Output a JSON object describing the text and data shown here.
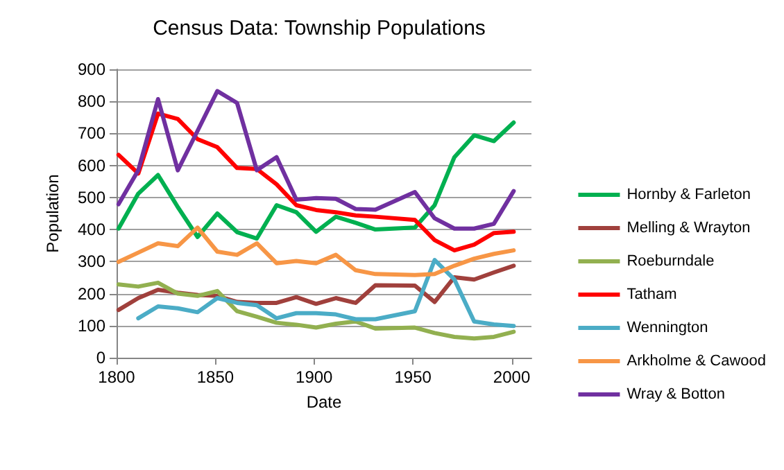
{
  "chart_data": {
    "type": "line",
    "title": "Census Data: Township Populations",
    "xlabel": "Date",
    "ylabel": "Population",
    "x": [
      1801,
      1811,
      1821,
      1831,
      1841,
      1851,
      1861,
      1871,
      1881,
      1891,
      1901,
      1911,
      1921,
      1931,
      1951,
      1961,
      1971,
      1981,
      1991,
      2001
    ],
    "series": [
      {
        "name": "Hornby & Farleton",
        "color": "#00b050",
        "values": [
          403,
          512,
          570,
          470,
          377,
          450,
          392,
          372,
          476,
          454,
          393,
          440,
          421,
          400,
          406,
          476,
          626,
          694,
          676,
          734
        ]
      },
      {
        "name": "Melling & Wrayton",
        "color": "#a0403c",
        "values": [
          149,
          186,
          212,
          203,
          196,
          193,
          174,
          171,
          171,
          189,
          168,
          186,
          171,
          226,
          225,
          174,
          251,
          244,
          266,
          287
        ]
      },
      {
        "name": "Roeburndale",
        "color": "#92b050",
        "values": [
          229,
          222,
          234,
          200,
          193,
          208,
          145,
          128,
          109,
          103,
          94,
          106,
          113,
          91,
          94,
          77,
          65,
          60,
          65,
          81
        ]
      },
      {
        "name": "Tatham",
        "color": "#ff0000",
        "values": [
          633,
          575,
          762,
          745,
          682,
          657,
          592,
          589,
          541,
          476,
          461,
          454,
          444,
          440,
          430,
          367,
          335,
          353,
          389,
          393
        ]
      },
      {
        "name": "Wennington",
        "color": "#4bacc6",
        "values": [
          null,
          123,
          160,
          154,
          142,
          186,
          171,
          164,
          123,
          139,
          139,
          135,
          120,
          120,
          145,
          305,
          244,
          113,
          104,
          99
        ]
      },
      {
        "name": "Arkholme & Cawood",
        "color": "#f79646",
        "values": [
          299,
          328,
          357,
          348,
          406,
          331,
          321,
          357,
          295,
          302,
          295,
          321,
          273,
          261,
          258,
          261,
          287,
          309,
          324,
          335
        ]
      },
      {
        "name": "Wray & Botton",
        "color": "#7030a0",
        "values": [
          479,
          585,
          807,
          585,
          708,
          832,
          795,
          585,
          626,
          493,
          498,
          496,
          464,
          462,
          517,
          435,
          403,
          403,
          418,
          520
        ]
      }
    ],
    "xlim": [
      1800,
      2010
    ],
    "xticks": [
      1800,
      1850,
      1900,
      1950,
      2000
    ],
    "ylim": [
      0,
      900
    ],
    "yticks": [
      0,
      100,
      200,
      300,
      400,
      500,
      600,
      700,
      800,
      900
    ],
    "grid": "y",
    "legend": "right",
    "marker": "none",
    "line_style": "solid"
  }
}
